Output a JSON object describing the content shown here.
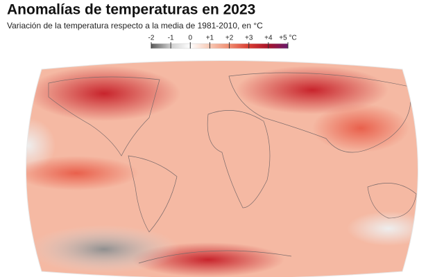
{
  "header": {
    "title": "Anomalías de temperaturas en 2023",
    "subtitle": "Variación de la temperatura respecto a la media de 1981-2010, en °C"
  },
  "legend": {
    "range": [
      -2,
      5
    ],
    "ticks": [
      -2,
      -1,
      0,
      {
        "value": 1,
        "label": "+1"
      },
      {
        "value": 2,
        "label": "+2"
      },
      {
        "value": 3,
        "label": "+3"
      },
      {
        "value": 4,
        "label": "+4"
      },
      {
        "value": 5,
        "label": "+5 °C"
      }
    ],
    "colors": [
      "#5a5a5a",
      "#cfcfcf",
      "#ffffff",
      "#f7c8b4",
      "#f08c70",
      "#d93c32",
      "#a8132a",
      "#6a1a6e"
    ]
  }
}
